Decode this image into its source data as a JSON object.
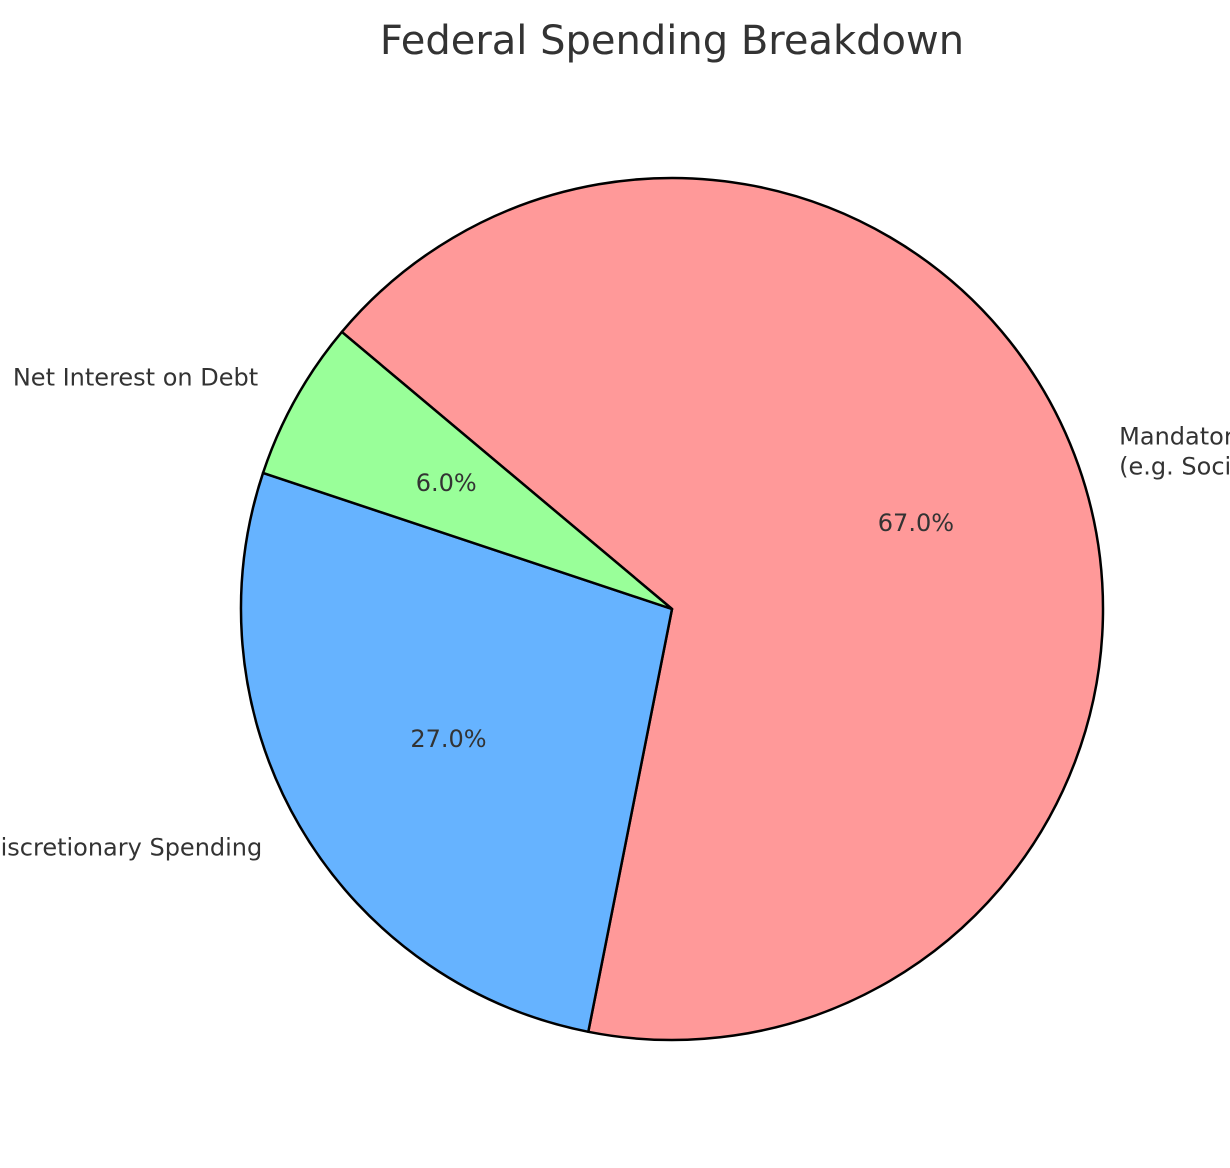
{
  "chart_data": {
    "type": "pie",
    "title": "Federal Spending Breakdown",
    "start_angle_deg": 140,
    "direction": "clockwise",
    "slices": [
      {
        "label_lines": [
          "Mandatory Spending",
          "(e.g. Social Security, Medicare, Medicaid)"
        ],
        "value": 67.0,
        "pct_label": "67.0%",
        "color": "#ff9999"
      },
      {
        "label_lines": [
          "Discretionary Spending"
        ],
        "value": 27.0,
        "pct_label": "27.0%",
        "color": "#66b3ff"
      },
      {
        "label_lines": [
          "Net Interest on Debt"
        ],
        "value": 6.0,
        "pct_label": "6.0%",
        "color": "#99ff99"
      }
    ],
    "edge_color": "#000000"
  }
}
